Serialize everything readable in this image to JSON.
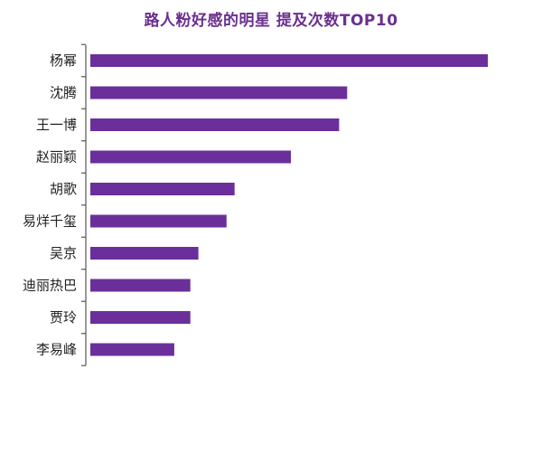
{
  "chart_data": {
    "type": "bar",
    "orientation": "horizontal",
    "title": "路人粉好感的明星 提及次数TOP10",
    "categories": [
      "杨幂",
      "沈腾",
      "王一博",
      "赵丽颖",
      "胡歌",
      "易烊千玺",
      "吴京",
      "迪丽热巴",
      "贾玲",
      "李易峰"
    ],
    "values": [
      100,
      65,
      63,
      51,
      37,
      35,
      28,
      26,
      26,
      22
    ],
    "xlim": [
      0,
      102
    ],
    "grid": false,
    "bar_color": "#6b2f9b"
  }
}
